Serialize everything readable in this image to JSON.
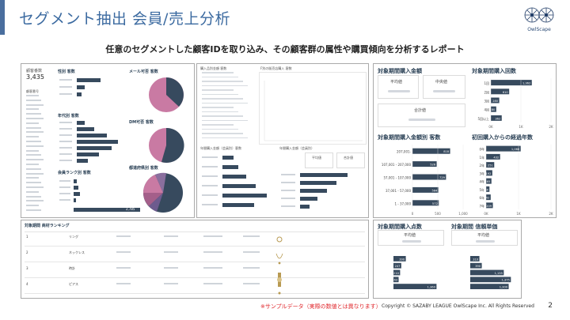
{
  "header": {
    "title": "セグメント抽出 会員/売上分析",
    "brand": "OwlScape"
  },
  "subtitle": "任意のセグメントした顧客IDを取り込み、その顧客群の属性や購買傾向を分析するレポート",
  "left_dashboard": {
    "total_label": "顧客番数",
    "total_value": "3,435",
    "list_header": "顧客番号",
    "gender_header": "性別 客数",
    "mail_header": "メール可否 客数",
    "age_header": "年代別 客数",
    "dm_header": "DM可否 客数",
    "rank_header": "会員ランク別 客数",
    "pref_header": "都道府県別 客数",
    "rank_bar_value": "2,785"
  },
  "mid_dashboard": {
    "panel1": "購入品別金額 客数",
    "panel2": "F別の販売店購入 客数",
    "panel3": "年間購入金額（会員別）客数",
    "panel4": "年間購入金額（会員別）",
    "avg_label": "平均値",
    "sum_label": "合計値"
  },
  "right_top": {
    "amount_header": "対象期間購入金額",
    "avg_label": "平均値",
    "median_label": "中央値",
    "sum_label": "合計値",
    "count_header": "対象期間購入回数",
    "count_categories": [
      "1回",
      "2回",
      "3回",
      "4回",
      "5回以上"
    ],
    "count_values": [
      1362,
      610,
      280,
      180,
      362
    ],
    "count_axis": [
      "0K",
      "1K",
      "2K"
    ],
    "amount_dist_header": "対象期間購入金額別 客数",
    "amount_dist_categories": [
      "207,001-",
      "107,001 - 207,000",
      "57,001 - 107,000",
      "37,001 - 57,000",
      "1 - 37,000"
    ],
    "amount_dist_values": [
      818,
      526,
      729,
      564,
      572
    ],
    "amount_dist_axis": [
      "0",
      "500",
      "1,000"
    ],
    "elapsed_header": "初回購入からの経過年数",
    "elapsed_categories": [
      "0年",
      "1年",
      "2年",
      "3年",
      "4年",
      "5年",
      "6年",
      "7年"
    ],
    "elapsed_values": [
      1066,
      432,
      251,
      192,
      165,
      104,
      142,
      209
    ],
    "elapsed_axis": [
      "0K",
      "1K",
      "2K"
    ]
  },
  "right_bottom": {
    "items_header": "対象期間購入点数",
    "unit_header": "対象期間 信頼単価",
    "avg_label": "平均値",
    "items_values": [
      390,
      247,
      210,
      163,
      1360
    ],
    "unit_values": [
      310,
      390,
      1135,
      1375,
      1300
    ]
  },
  "ranking": {
    "header": "対象期間 商材ランキング",
    "rows": [
      {
        "rank": "1",
        "cat": "リング"
      },
      {
        "rank": "2",
        "cat": "ネックレス"
      },
      {
        "rank": "3",
        "cat": "時計"
      },
      {
        "rank": "4",
        "cat": "ピアス"
      }
    ]
  },
  "footer": {
    "note": "※サンプルデータ（実際の数値とは異なります）",
    "copyright": "Copyright © SAZABY LEAGUE OwlScape Inc. All Rights Reserved",
    "page": "2"
  },
  "colors": {
    "title_blue": "#3b6aa0",
    "bar_navy": "#374a5e",
    "pie_pink": "#c97aa3",
    "note_red": "#e0262b"
  }
}
